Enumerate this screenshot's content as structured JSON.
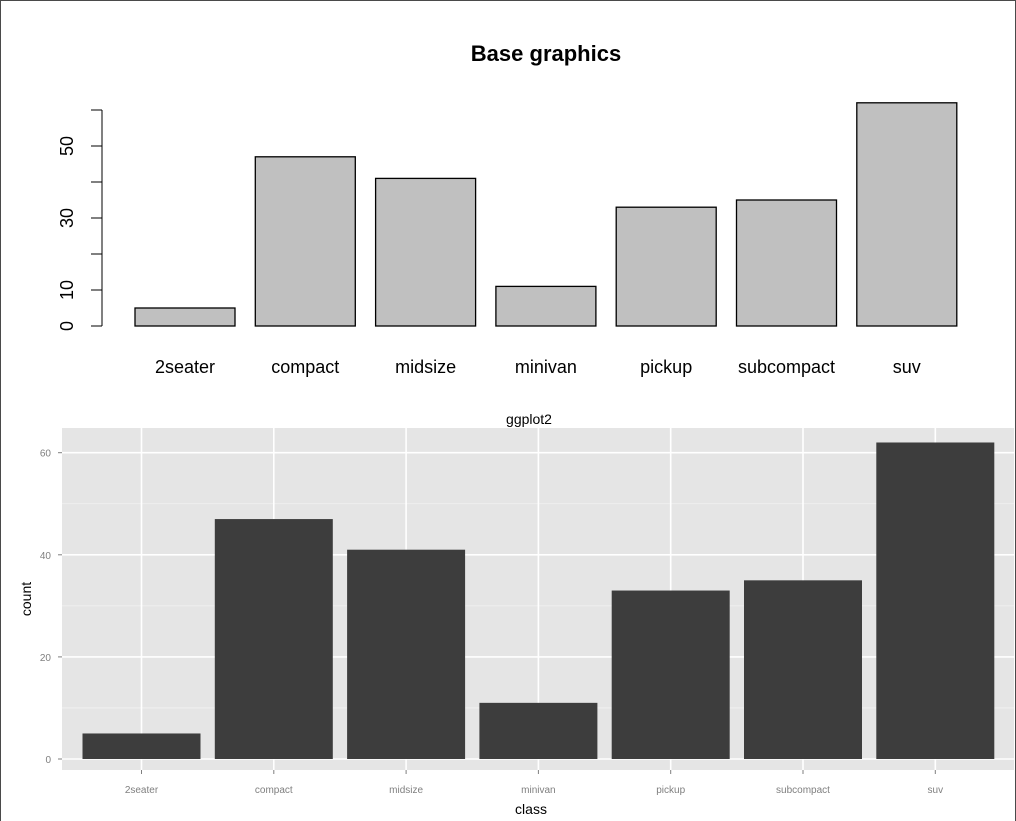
{
  "chart_data": [
    {
      "type": "bar",
      "title": "Base graphics",
      "xlabel": "",
      "ylabel": "",
      "categories": [
        "2seater",
        "compact",
        "midsize",
        "minivan",
        "pickup",
        "subcompact",
        "suv"
      ],
      "values": [
        5,
        47,
        41,
        11,
        33,
        35,
        62
      ],
      "ylim": [
        0,
        60
      ],
      "y_ticks": [
        "0",
        "10",
        "30",
        "50"
      ],
      "bar_color": "#c0c0c0",
      "grid": false
    },
    {
      "type": "bar",
      "title": "ggplot2",
      "xlabel": "class",
      "ylabel": "count",
      "categories": [
        "2seater",
        "compact",
        "midsize",
        "minivan",
        "pickup",
        "subcompact",
        "suv"
      ],
      "values": [
        5,
        47,
        41,
        11,
        33,
        35,
        62
      ],
      "ylim": [
        0,
        65
      ],
      "y_ticks": [
        "0",
        "20",
        "40",
        "60"
      ],
      "bar_color": "#3d3d3d",
      "panel_color": "#e5e5e5",
      "grid": true
    }
  ]
}
